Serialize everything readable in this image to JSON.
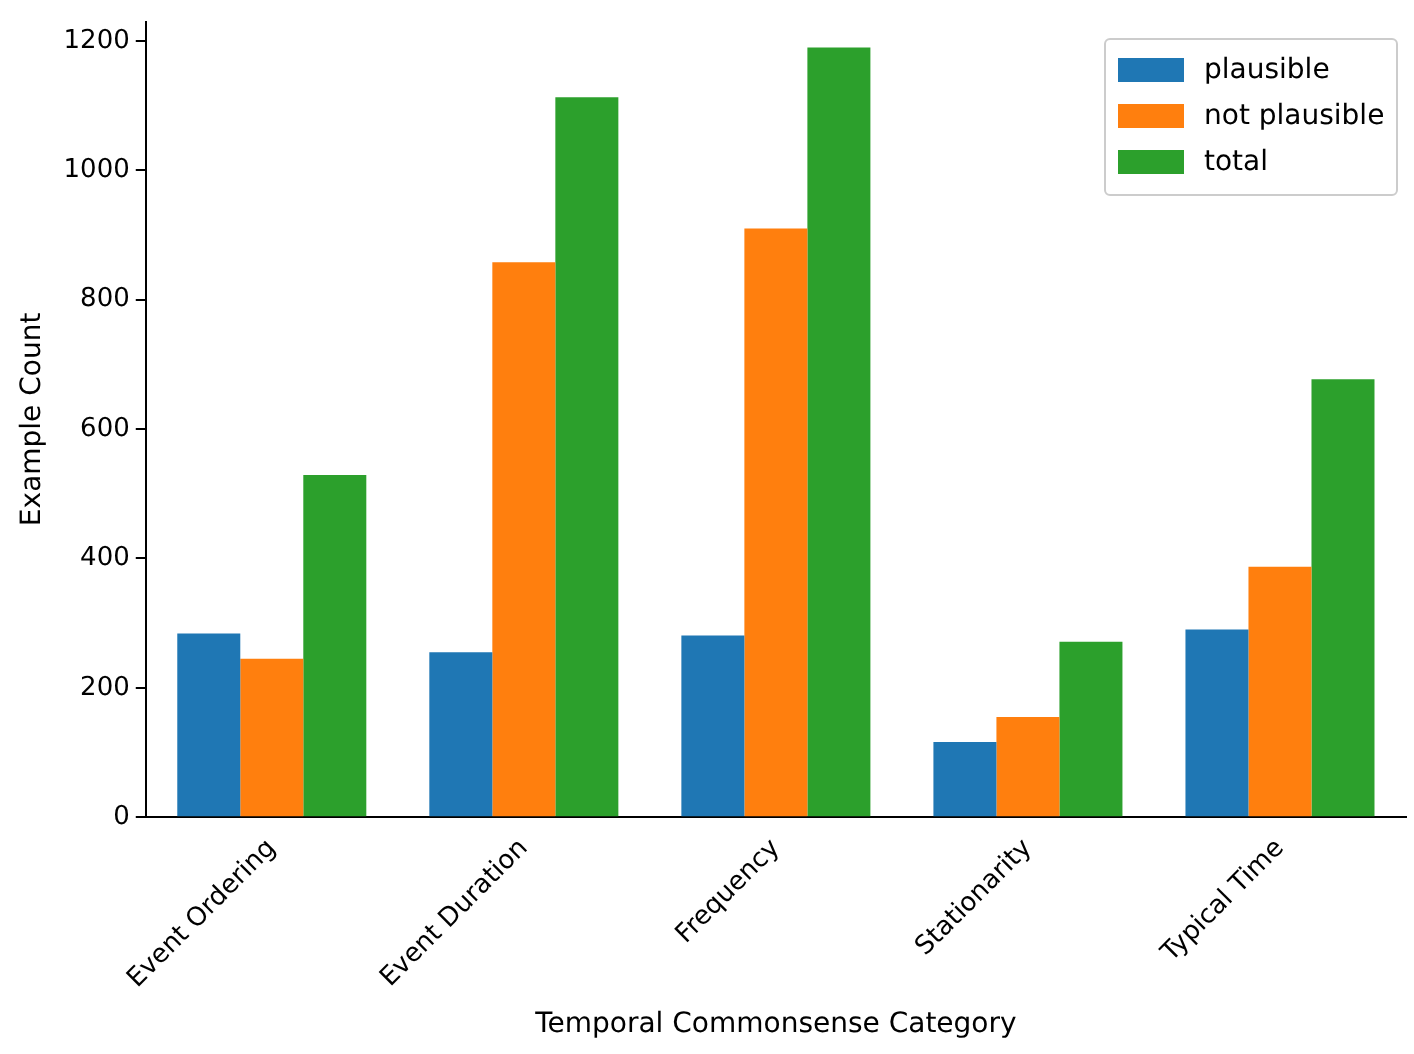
{
  "chart_data": {
    "type": "bar",
    "xlabel": "Temporal Commonsense Category",
    "ylabel": "Example Count",
    "categories": [
      "Event Ordering",
      "Event Duration",
      "Frequency",
      "Stationarity",
      "Typical Time"
    ],
    "series": [
      {
        "name": "plausible",
        "color": "#1f77b4",
        "values": [
          284,
          255,
          281,
          116,
          290
        ]
      },
      {
        "name": "not plausible",
        "color": "#ff7f0e",
        "values": [
          245,
          858,
          910,
          155,
          387
        ]
      },
      {
        "name": "total",
        "color": "#2ca02c",
        "values": [
          529,
          1113,
          1190,
          271,
          677
        ]
      }
    ],
    "ylim": [
      0,
      1230
    ],
    "yticks": [
      0,
      200,
      400,
      600,
      800,
      1000,
      1200
    ],
    "grid": false,
    "legend": "top right"
  }
}
